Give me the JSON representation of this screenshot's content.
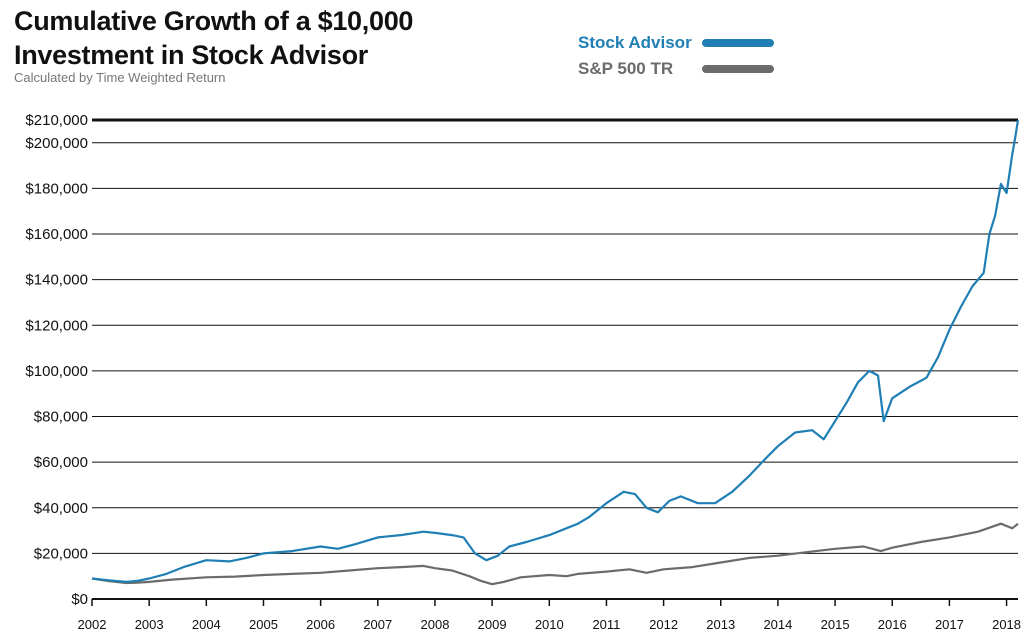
{
  "chart_data": {
    "type": "line",
    "title_line1": "Cumulative Growth of a $10,000",
    "title_line2": "Investment in Stock Advisor",
    "subtitle": "Calculated by Time Weighted Return",
    "xlabel": "",
    "ylabel": "",
    "ylim": [
      0,
      210000
    ],
    "xlim": [
      2002.0,
      2018.2
    ],
    "y_ticks": [
      0,
      20000,
      40000,
      60000,
      80000,
      100000,
      120000,
      140000,
      160000,
      180000,
      200000,
      210000
    ],
    "y_tick_labels": [
      "$0",
      "$20,000",
      "$40,000",
      "$60,000",
      "$80,000",
      "$100,000",
      "$120,000",
      "$140,000",
      "$160,000",
      "$180,000",
      "$200,000",
      "$210,000"
    ],
    "x_ticks": [
      2002,
      2003,
      2004,
      2005,
      2006,
      2007,
      2008,
      2009,
      2010,
      2011,
      2012,
      2013,
      2014,
      2015,
      2016,
      2017,
      2018
    ],
    "x_tick_labels": [
      "2002",
      "2003",
      "2004",
      "2005",
      "2006",
      "2007",
      "2008",
      "2009",
      "2010",
      "2011",
      "2012",
      "2013",
      "2014",
      "2015",
      "2016",
      "2017",
      "2018"
    ],
    "grid": true,
    "legend_position": "top-right",
    "series": [
      {
        "name": "Stock Advisor",
        "color": "#1f7fb5",
        "x": [
          2002.0,
          2002.3,
          2002.6,
          2002.8,
          2003.0,
          2003.3,
          2003.6,
          2004.0,
          2004.4,
          2004.7,
          2005.0,
          2005.5,
          2006.0,
          2006.3,
          2006.6,
          2007.0,
          2007.4,
          2007.8,
          2008.0,
          2008.3,
          2008.5,
          2008.7,
          2008.9,
          2009.1,
          2009.3,
          2009.6,
          2010.0,
          2010.3,
          2010.5,
          2010.7,
          2011.0,
          2011.3,
          2011.5,
          2011.7,
          2011.9,
          2012.1,
          2012.3,
          2012.6,
          2012.9,
          2013.2,
          2013.5,
          2013.8,
          2014.0,
          2014.3,
          2014.6,
          2014.8,
          2015.0,
          2015.2,
          2015.4,
          2015.6,
          2015.75,
          2015.85,
          2016.0,
          2016.3,
          2016.6,
          2016.8,
          2017.0,
          2017.2,
          2017.4,
          2017.6,
          2017.7,
          2017.8,
          2017.9,
          2018.0,
          2018.1,
          2018.15,
          2018.2
        ],
        "values": [
          9000,
          8200,
          7500,
          8000,
          9000,
          11000,
          14000,
          17000,
          16500,
          18000,
          20000,
          21000,
          23000,
          22000,
          24000,
          27000,
          28000,
          29500,
          29000,
          28000,
          27000,
          20000,
          17000,
          19000,
          23000,
          25000,
          28000,
          31000,
          33000,
          36000,
          42000,
          47000,
          46000,
          40000,
          38000,
          43000,
          45000,
          42000,
          42000,
          47000,
          54000,
          62000,
          67000,
          73000,
          74000,
          70000,
          78000,
          86000,
          95000,
          100000,
          98000,
          78000,
          88000,
          93000,
          97000,
          106000,
          118000,
          128000,
          137000,
          143000,
          160000,
          168000,
          182000,
          178000,
          195000,
          202000,
          210000
        ]
      },
      {
        "name": "S&P 500 TR",
        "color": "#6b6b6b",
        "x": [
          2002.0,
          2002.3,
          2002.6,
          2002.8,
          2003.0,
          2003.4,
          2004.0,
          2004.5,
          2005.0,
          2005.5,
          2006.0,
          2006.5,
          2007.0,
          2007.4,
          2007.8,
          2008.0,
          2008.3,
          2008.6,
          2008.8,
          2009.0,
          2009.2,
          2009.5,
          2010.0,
          2010.3,
          2010.5,
          2011.0,
          2011.4,
          2011.7,
          2012.0,
          2012.5,
          2013.0,
          2013.5,
          2014.0,
          2014.5,
          2015.0,
          2015.5,
          2015.8,
          2016.0,
          2016.5,
          2017.0,
          2017.5,
          2017.9,
          2018.0,
          2018.1,
          2018.2
        ],
        "values": [
          9000,
          7800,
          7000,
          7200,
          7500,
          8500,
          9500,
          9800,
          10500,
          11000,
          11500,
          12500,
          13500,
          14000,
          14500,
          13500,
          12500,
          10000,
          8000,
          6500,
          7500,
          9500,
          10500,
          10000,
          11000,
          12000,
          13000,
          11500,
          13000,
          14000,
          16000,
          18000,
          19000,
          20500,
          22000,
          23000,
          21000,
          22500,
          25000,
          27000,
          29500,
          33000,
          32000,
          31000,
          33000
        ]
      }
    ]
  }
}
